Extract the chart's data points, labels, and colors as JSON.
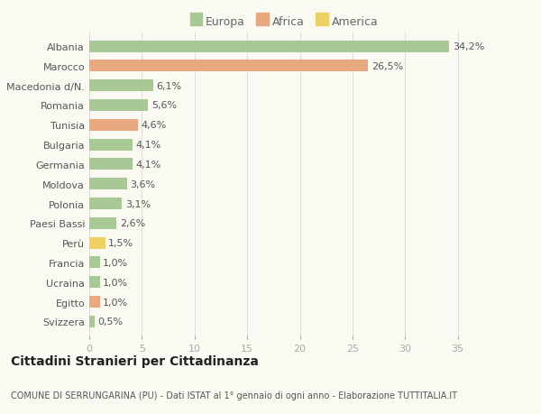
{
  "countries": [
    "Albania",
    "Marocco",
    "Macedonia d/N.",
    "Romania",
    "Tunisia",
    "Bulgaria",
    "Germania",
    "Moldova",
    "Polonia",
    "Paesi Bassi",
    "Perù",
    "Francia",
    "Ucraina",
    "Egitto",
    "Svizzera"
  ],
  "values": [
    34.2,
    26.5,
    6.1,
    5.6,
    4.6,
    4.1,
    4.1,
    3.6,
    3.1,
    2.6,
    1.5,
    1.0,
    1.0,
    1.0,
    0.5
  ],
  "continents": [
    "Europa",
    "Africa",
    "Europa",
    "Europa",
    "Africa",
    "Europa",
    "Europa",
    "Europa",
    "Europa",
    "Europa",
    "America",
    "Europa",
    "Europa",
    "Africa",
    "Europa"
  ],
  "labels": [
    "34,2%",
    "26,5%",
    "6,1%",
    "5,6%",
    "4,6%",
    "4,1%",
    "4,1%",
    "3,6%",
    "3,1%",
    "2,6%",
    "1,5%",
    "1,0%",
    "1,0%",
    "1,0%",
    "0,5%"
  ],
  "colors": {
    "Europa": "#a8c896",
    "Africa": "#e8a880",
    "America": "#f0d060"
  },
  "background_color": "#fafaf2",
  "title": "Cittadini Stranieri per Cittadinanza",
  "subtitle": "COMUNE DI SERRUNGARINA (PU) - Dati ISTAT al 1° gennaio di ogni anno - Elaborazione TUTTITALIA.IT",
  "xlim": [
    0,
    37
  ],
  "xticks": [
    0,
    5,
    10,
    15,
    20,
    25,
    30,
    35
  ],
  "bar_height": 0.6,
  "label_fontsize": 8,
  "ytick_fontsize": 8,
  "xtick_fontsize": 8,
  "legend_fontsize": 9,
  "title_fontsize": 10,
  "subtitle_fontsize": 7
}
